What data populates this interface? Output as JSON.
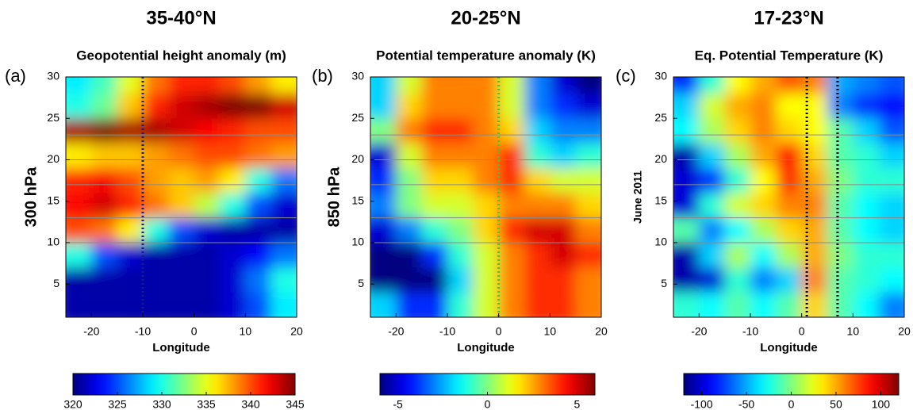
{
  "chart_data": [
    {
      "type": "heatmap",
      "title": "35-40°N",
      "subtitle": "Geopotential height anomaly (m)",
      "panel_label": "(a)",
      "ylabel": "300 hPa",
      "xlabel": "Longitude",
      "colormap": "jet",
      "xlim": [
        -25,
        20
      ],
      "ylim": [
        1,
        30
      ],
      "xticks": [
        -20,
        -10,
        0,
        10,
        20
      ],
      "yticks": [
        5,
        10,
        15,
        20,
        25,
        30
      ],
      "x": [
        -22.5,
        -17.5,
        -12.5,
        -7.5,
        -2.5,
        2.5,
        7.5,
        12.5,
        17.5
      ],
      "y": [
        2.5,
        5.5,
        8.5,
        11.5,
        14.5,
        17.5,
        20.5,
        23.5,
        26.5,
        29.5
      ],
      "z": [
        [
          321,
          321,
          321,
          321,
          321,
          321,
          322,
          325,
          329
        ],
        [
          321,
          321,
          321,
          321,
          321,
          321,
          322,
          326,
          330
        ],
        [
          330,
          325,
          322,
          321,
          321,
          321,
          322,
          323,
          326
        ],
        [
          340,
          339,
          336,
          330,
          325,
          322,
          321,
          321,
          321
        ],
        [
          342,
          343,
          341,
          339,
          337,
          334,
          330,
          325,
          322
        ],
        [
          341,
          342,
          340,
          338,
          337,
          338,
          336,
          330,
          326
        ],
        [
          336,
          337,
          337,
          338,
          339,
          340,
          340,
          339,
          338
        ],
        [
          344,
          345,
          344,
          344,
          343,
          342,
          341,
          340,
          340
        ],
        [
          330,
          332,
          337,
          341,
          343,
          344,
          345,
          345,
          343
        ],
        [
          329,
          331,
          335,
          339,
          341,
          341,
          340,
          338,
          336
        ]
      ],
      "clim": [
        320,
        345
      ],
      "cticks": [
        320,
        325,
        330,
        335,
        340,
        345
      ],
      "vlines": [
        -10
      ],
      "vline_color": "#1a1a8c",
      "hlines": [
        10,
        13,
        17,
        20,
        23
      ],
      "hline_color": "#8a8a8a"
    },
    {
      "type": "heatmap",
      "title": "20-25°N",
      "subtitle": "Potential temperature anomaly (K)",
      "panel_label": "(b)",
      "ylabel": "850 hPa",
      "xlabel": "Longitude",
      "colormap": "jet",
      "xlim": [
        -25,
        20
      ],
      "ylim": [
        1,
        30
      ],
      "xticks": [
        -20,
        -10,
        0,
        10,
        20
      ],
      "yticks": [
        5,
        10,
        15,
        20,
        25,
        30
      ],
      "x": [
        -22.5,
        -17.5,
        -12.5,
        -7.5,
        -2.5,
        2.5,
        7.5,
        12.5,
        17.5
      ],
      "y": [
        2.5,
        5.5,
        8.5,
        11.5,
        14.5,
        17.5,
        20.5,
        23.5,
        26.5,
        29.5
      ],
      "z": [
        [
          -2,
          -4,
          -4,
          -1,
          1,
          3,
          4,
          4,
          3
        ],
        [
          -6,
          -6,
          -6,
          -2,
          1,
          3,
          4,
          4,
          3
        ],
        [
          -6,
          -6,
          -4,
          -1,
          1,
          3,
          4,
          5,
          4
        ],
        [
          -5,
          -3,
          -1,
          0,
          2,
          4,
          5,
          5,
          3
        ],
        [
          -3,
          0,
          1,
          1,
          2,
          3,
          3,
          3,
          2
        ],
        [
          -4,
          0,
          2,
          2,
          3,
          4,
          2,
          1,
          1
        ],
        [
          -5,
          1,
          3,
          3,
          3,
          4,
          -1,
          -2,
          -1
        ],
        [
          0,
          3,
          4,
          4,
          3,
          2,
          -2,
          -3,
          -3
        ],
        [
          -2,
          2,
          3,
          3,
          3,
          1,
          -3,
          -4,
          -5
        ],
        [
          -2,
          1,
          3,
          3,
          3,
          1,
          -3,
          -5,
          -6
        ]
      ],
      "clim": [
        -6,
        6
      ],
      "cticks": [
        -5,
        0,
        5
      ],
      "vlines": [
        0
      ],
      "vline_color": "#3cc83c",
      "hlines": [
        10,
        13,
        17,
        20,
        23
      ],
      "hline_color": "#8a8a8a"
    },
    {
      "type": "heatmap",
      "title": "17-23°N",
      "subtitle": "Eq. Potential Temperature (K)",
      "panel_label": "(c)",
      "ylabel": "June 2011",
      "xlabel": "Longitude",
      "colormap": "jet",
      "xlim": [
        -25,
        20
      ],
      "ylim": [
        1,
        30
      ],
      "xticks": [
        -20,
        -10,
        0,
        10,
        20
      ],
      "yticks": [
        5,
        10,
        15,
        20,
        25,
        30
      ],
      "x": [
        -22.5,
        -17.5,
        -12.5,
        -7.5,
        -2.5,
        2.5,
        7.5,
        12.5,
        17.5
      ],
      "y": [
        2.5,
        5.5,
        8.5,
        11.5,
        14.5,
        17.5,
        20.5,
        23.5,
        26.5,
        29.5
      ],
      "z": [
        [
          -20,
          -30,
          -10,
          -30,
          -10,
          40,
          -10,
          -30,
          -60
        ],
        [
          -110,
          -100,
          -20,
          -60,
          -40,
          60,
          -10,
          -20,
          -30
        ],
        [
          -110,
          -40,
          10,
          -30,
          10,
          50,
          0,
          -20,
          -20
        ],
        [
          -10,
          -60,
          -30,
          10,
          40,
          50,
          -10,
          -30,
          -40
        ],
        [
          -100,
          -20,
          20,
          40,
          60,
          60,
          -10,
          -30,
          -40
        ],
        [
          -100,
          -80,
          -20,
          30,
          80,
          50,
          0,
          -20,
          -20
        ],
        [
          -110,
          -40,
          10,
          50,
          90,
          40,
          -10,
          -20,
          -40
        ],
        [
          -30,
          10,
          40,
          60,
          40,
          30,
          -10,
          -40,
          -70
        ],
        [
          -40,
          20,
          50,
          60,
          30,
          30,
          -60,
          -80,
          -90
        ],
        [
          -80,
          -20,
          30,
          50,
          70,
          60,
          -50,
          -60,
          -70
        ]
      ],
      "clim": [
        -120,
        120
      ],
      "cticks": [
        -100,
        -50,
        0,
        50,
        100
      ],
      "vlines": [
        1,
        7
      ],
      "vline_color": "#000000",
      "hlines": [
        10,
        13,
        17,
        20,
        23
      ],
      "hline_color": "#8a8a8a"
    }
  ]
}
